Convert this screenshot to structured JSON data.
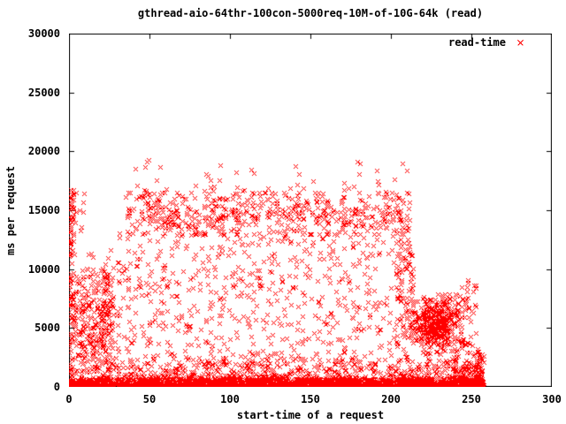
{
  "chart_data": {
    "type": "scatter",
    "title": "gthread-aio-64thr-100con-5000req-10M-of-10G-64k (read)",
    "xlabel": "start-time of a request",
    "ylabel": "ms per request",
    "xlim": [
      0,
      300
    ],
    "ylim": [
      0,
      30000
    ],
    "x_ticks": [
      0,
      50,
      100,
      150,
      200,
      250,
      300
    ],
    "y_ticks": [
      0,
      5000,
      10000,
      15000,
      20000,
      25000,
      30000
    ],
    "grid": false,
    "legend_position": "top-right-inside",
    "marker": "x",
    "series": [
      {
        "name": "read-time",
        "color": "#ff0000",
        "points_note": "≈5000 request latency samples; x = request start time (s), y = ms per request; data spans x 0–258, dense floor band 0–2000 ms, main plateau band ≈13000–16500 ms for x 35–212, peaks to ≈19300 ms near x 76, drop-off cluster ≈3000–8000 ms for x 213–245, tail decaying to 0 by x 258",
        "clusters": [
          {
            "name": "bottom-dense-band",
            "count": 2400,
            "dist": "decayUp",
            "x": [
              0,
              257.5
            ],
            "y": [
              0,
              700
            ]
          },
          {
            "name": "bottom-scatter",
            "count": 800,
            "dist": "decayUp",
            "x": [
              0,
              257.5
            ],
            "y": [
              600,
              2400
            ]
          },
          {
            "name": "left-edge-column",
            "count": 100,
            "dist": "uniform",
            "x": [
              0,
              3
            ],
            "y": [
              100,
              16800
            ]
          },
          {
            "name": "left-cloud",
            "count": 240,
            "dist": "gauss",
            "x": [
              2,
              31
            ],
            "y": [
              1700,
              11800
            ],
            "cx": 13,
            "cy": 5600,
            "sx": 9,
            "sy": 2800
          },
          {
            "name": "left-inner-column",
            "count": 70,
            "dist": "uniform",
            "x": [
              20,
              27
            ],
            "y": [
              1500,
              10500
            ]
          },
          {
            "name": "left-top-outliers",
            "count": 14,
            "dist": "uniform",
            "x": [
              0,
              10
            ],
            "y": [
              13000,
              16800
            ]
          },
          {
            "name": "mid-scatter",
            "count": 620,
            "dist": "uniform",
            "x": [
              30,
              213
            ],
            "y": [
              2300,
              13300
            ]
          },
          {
            "name": "upper-plateau-band",
            "count": 520,
            "dist": "hband",
            "x": [
              35,
              212
            ],
            "y": [
              13000,
              16500
            ],
            "cy": 14800,
            "sy": 950,
            "wave": [
              350,
              17
            ]
          },
          {
            "name": "upper-outliers",
            "count": 60,
            "dist": "decayUp",
            "x": [
              40,
              210
            ],
            "y": [
              16400,
              19300
            ]
          },
          {
            "name": "right-descent-column",
            "count": 90,
            "dist": "uniform",
            "x": [
              203,
              214
            ],
            "y": [
              2000,
              14300
            ]
          },
          {
            "name": "right-cluster",
            "count": 430,
            "dist": "gauss",
            "x": [
              213,
              245
            ],
            "y": [
              2600,
              7900
            ],
            "cx": 228,
            "cy": 5400,
            "sx": 8,
            "sy": 1200
          },
          {
            "name": "right-tail",
            "count": 160,
            "dist": "decayUp",
            "x": [
              238,
              258
            ],
            "y": [
              0,
              3300
            ]
          },
          {
            "name": "right-tail-sparse",
            "count": 45,
            "dist": "uniform",
            "x": [
              243,
              253
            ],
            "y": [
              3200,
              9200
            ]
          }
        ]
      }
    ],
    "axis_color": "#000000",
    "background_color": "#ffffff",
    "random_seed": 1234
  }
}
